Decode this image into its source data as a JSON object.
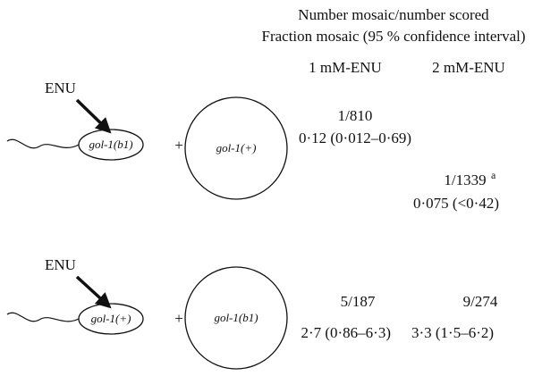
{
  "header": {
    "line1": "Number mosaic/number scored",
    "line2": "Fraction mosaic (95 % confidence interval)"
  },
  "columns": [
    "1 mM-ENU",
    "2 mM-ENU"
  ],
  "rows": [
    {
      "mutagen": "ENU",
      "sperm": "gol-1(b1)",
      "egg": "gol-1(+)",
      "results": [
        {
          "count": "1/810",
          "fraction": "0·12 (0·012–0·69)"
        },
        {
          "count": "1/1339",
          "note": "a",
          "fraction": "0·075 (<0·42)"
        }
      ]
    },
    {
      "mutagen": "ENU",
      "sperm": "gol-1(+)",
      "egg": "gol-1(b1)",
      "results": [
        {
          "count": "5/187",
          "fraction": "2·7 (0·86–6·3)"
        },
        {
          "count": "9/274",
          "fraction": "3·3 (1·5–6·2)"
        }
      ]
    }
  ]
}
